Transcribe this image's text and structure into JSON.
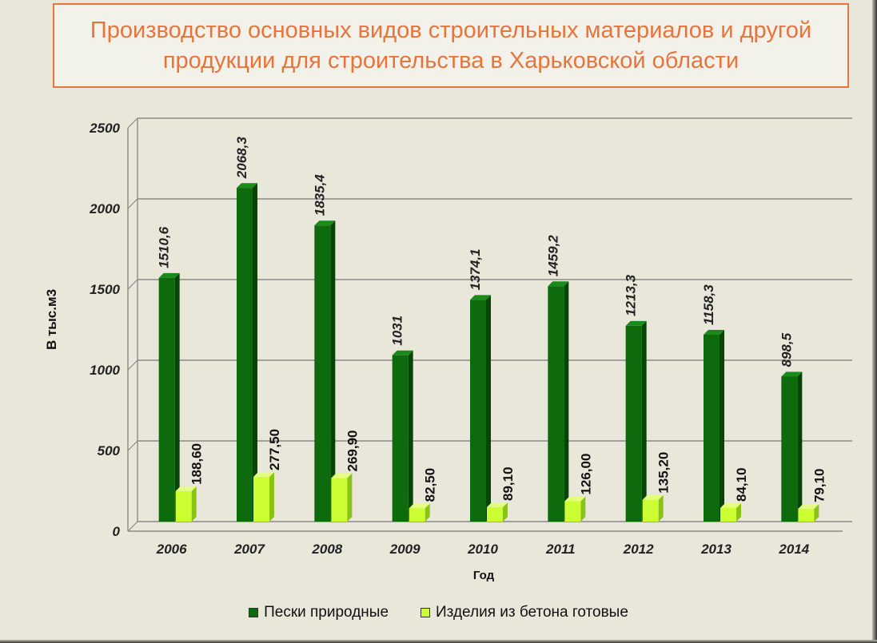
{
  "title": "Производство основных видов строительных материалов и другой продукции для строительства в Харьковской области",
  "colors": {
    "series1_front": "#0d6a0d",
    "series1_side": "#074507",
    "series1_top": "#1b8a1b",
    "series2_front": "#ccff33",
    "series2_side": "#8bc21a",
    "series2_top": "#e4ff80",
    "title": "#e8743b"
  },
  "chart_data": {
    "type": "bar",
    "categories": [
      "2006",
      "2007",
      "2008",
      "2009",
      "2010",
      "2011",
      "2012",
      "2013",
      "2014"
    ],
    "series": [
      {
        "name": "Пески природные",
        "values": [
          1510.6,
          2068.3,
          1835.4,
          1031,
          1374.1,
          1459.2,
          1213.3,
          1158.3,
          898.5
        ],
        "labels": [
          "1510,6",
          "2068,3",
          "1835,4",
          "1031",
          "1374,1",
          "1459,2",
          "1213,3",
          "1158,3",
          "898,5"
        ]
      },
      {
        "name": "Изделия из бетона готовые",
        "values": [
          188.6,
          277.5,
          269.9,
          82.5,
          89.1,
          126.0,
          135.2,
          84.1,
          79.1
        ],
        "labels": [
          "188,60",
          "277,50",
          "269,90",
          "82,50",
          "89,10",
          "126,00",
          "135,20",
          "84,10",
          "79,10"
        ]
      }
    ],
    "xlabel": "Год",
    "ylabel": "В тыс.м3",
    "yticks": [
      "0",
      "500",
      "1000",
      "1500",
      "2000",
      "2500"
    ],
    "ylim": [
      0,
      2500
    ],
    "grid": true,
    "legend_position": "bottom"
  }
}
